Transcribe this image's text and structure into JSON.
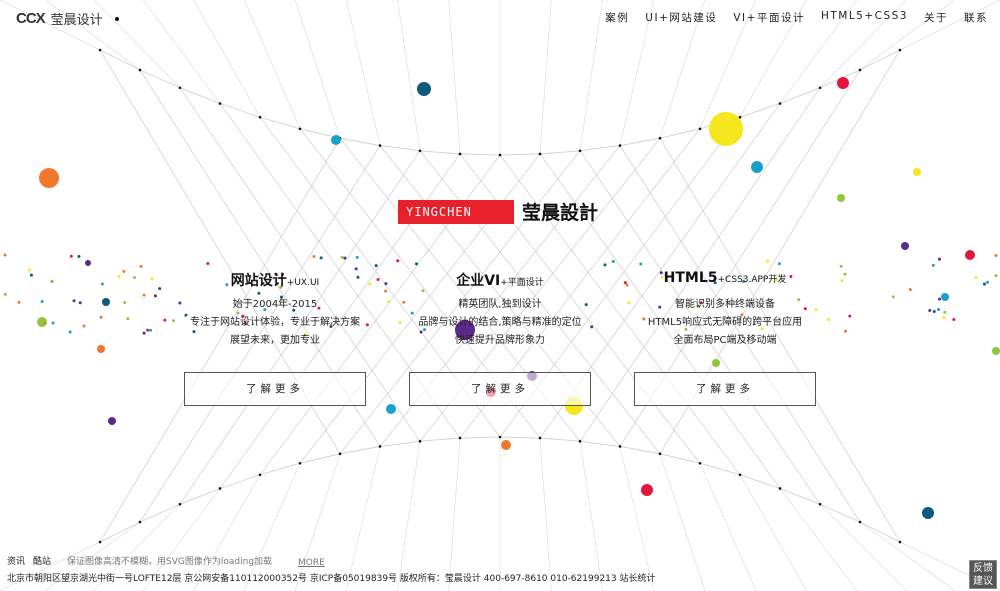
{
  "header": {
    "logo_mark": "CCX",
    "logo_text": "莹晨设计",
    "nav": [
      "案例",
      "UI+网站建设",
      "VI+平面设计",
      "HTML5+CSS3",
      "关于",
      "联系"
    ]
  },
  "brand": {
    "en": "YINGCHEN",
    "cn": "莹晨設計"
  },
  "columns": [
    {
      "title": "网站设计",
      "sub": "+UX.UI",
      "lines": [
        "始于2004年-2015",
        "专注于网站设计体验，专业于解决方案",
        "展望未来，更加专业"
      ],
      "button": "了解更多"
    },
    {
      "title": "企业VI",
      "sub": "+平面设计",
      "lines": [
        "精英团队,独到设计",
        "品牌与设计的结合,策略与精准的定位",
        "快速提升品牌形象力"
      ],
      "button": "了解更多"
    },
    {
      "title": "HTML5",
      "sub": "+CSS3.APP开发",
      "lines": [
        "智能识别多种终端设备",
        "HTML5响应式无障碍的跨平台应用",
        "全面布局PC端及移动端"
      ],
      "button": "了解更多"
    }
  ],
  "footer": {
    "links": [
      "资讯",
      "酷站"
    ],
    "tip": "保证图像高清不模糊，用SVG图像作为loading加载",
    "more": "MORE",
    "info": "北京市朝阳区望京湖光中街一号LOFTE12层 京公网安备110112000352号 京ICP备05019839号 版权所有：莹晨设计 400-697-8610 010-62199213 站长统计"
  },
  "feedback": "反馈建议",
  "colors": {
    "brand_red": "#e8202a",
    "dot_palette": [
      "#f0782d",
      "#0e5a7a",
      "#1aa0c8",
      "#f5e61e",
      "#e0173c",
      "#5b2a8c",
      "#8cc83c"
    ]
  }
}
